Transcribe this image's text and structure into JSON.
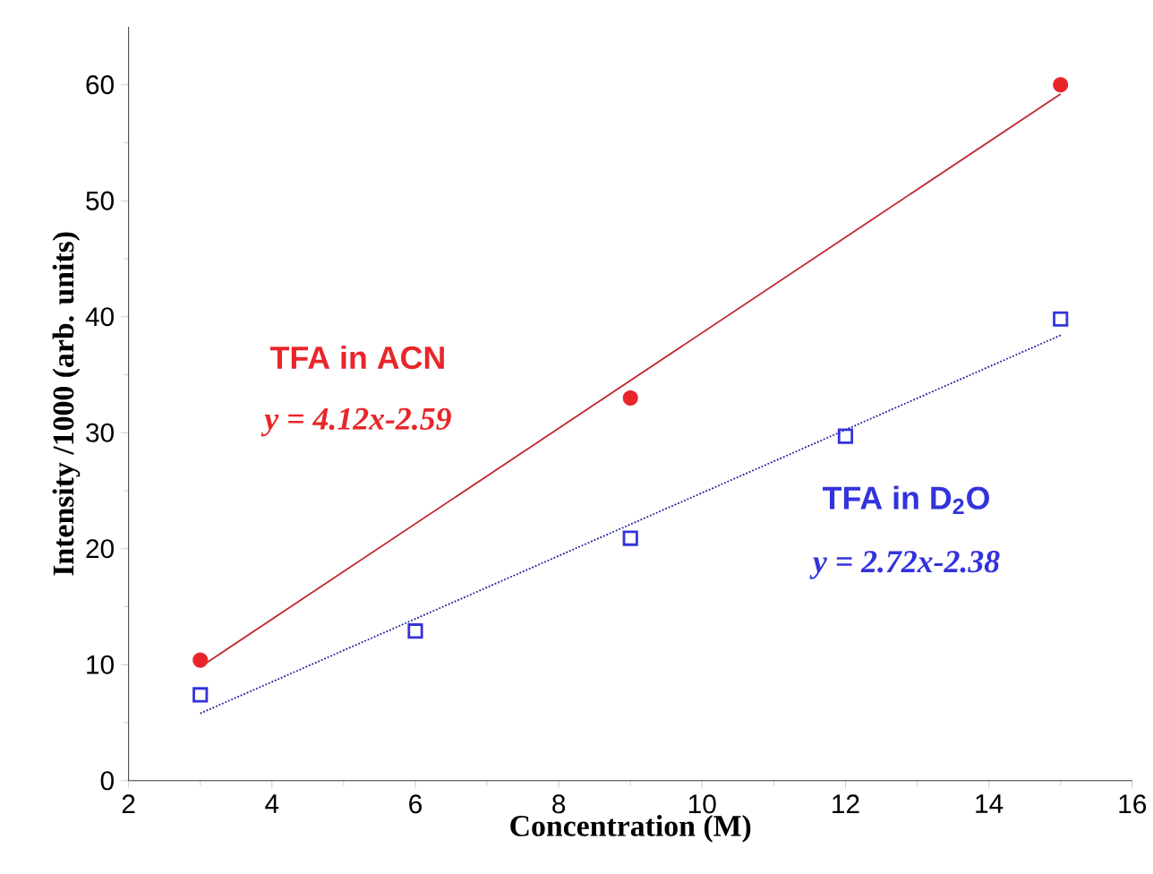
{
  "chart_data": {
    "type": "scatter",
    "xlabel": "Concentration (M)",
    "ylabel": "Intensity /1000 (arb. units)",
    "xlim": [
      2,
      16
    ],
    "xticks": [
      2,
      4,
      6,
      8,
      10,
      12,
      14,
      16
    ],
    "ylim": [
      0,
      65
    ],
    "yticks": [
      0,
      10,
      20,
      30,
      40,
      50,
      60
    ],
    "series": [
      {
        "name": "TFA in ACN",
        "color": "#e8262a",
        "marker": "circle",
        "x": [
          3,
          9,
          15
        ],
        "values": [
          10.4,
          33.0,
          60.0
        ]
      },
      {
        "name": "TFA in D$_{2}$O",
        "color": "#3333dd",
        "marker": "square",
        "x": [
          3,
          6,
          9,
          12,
          15
        ],
        "values": [
          7.4,
          12.9,
          20.9,
          29.7,
          39.8
        ]
      },
      {
        "type": "line",
        "color": "#c0272d",
        "marker": "none",
        "line_style": "solid",
        "x": [
          3,
          15
        ],
        "values": [
          9.8,
          59.2
        ]
      },
      {
        "type": "line",
        "color": "#1a1a9a",
        "marker": "none",
        "line_style": "dotted",
        "x": [
          3,
          15
        ],
        "values": [
          5.8,
          38.4
        ]
      }
    ],
    "annotations": [
      "y = 4.12x-2.59",
      "y = 2.72x-2.38"
    ]
  }
}
